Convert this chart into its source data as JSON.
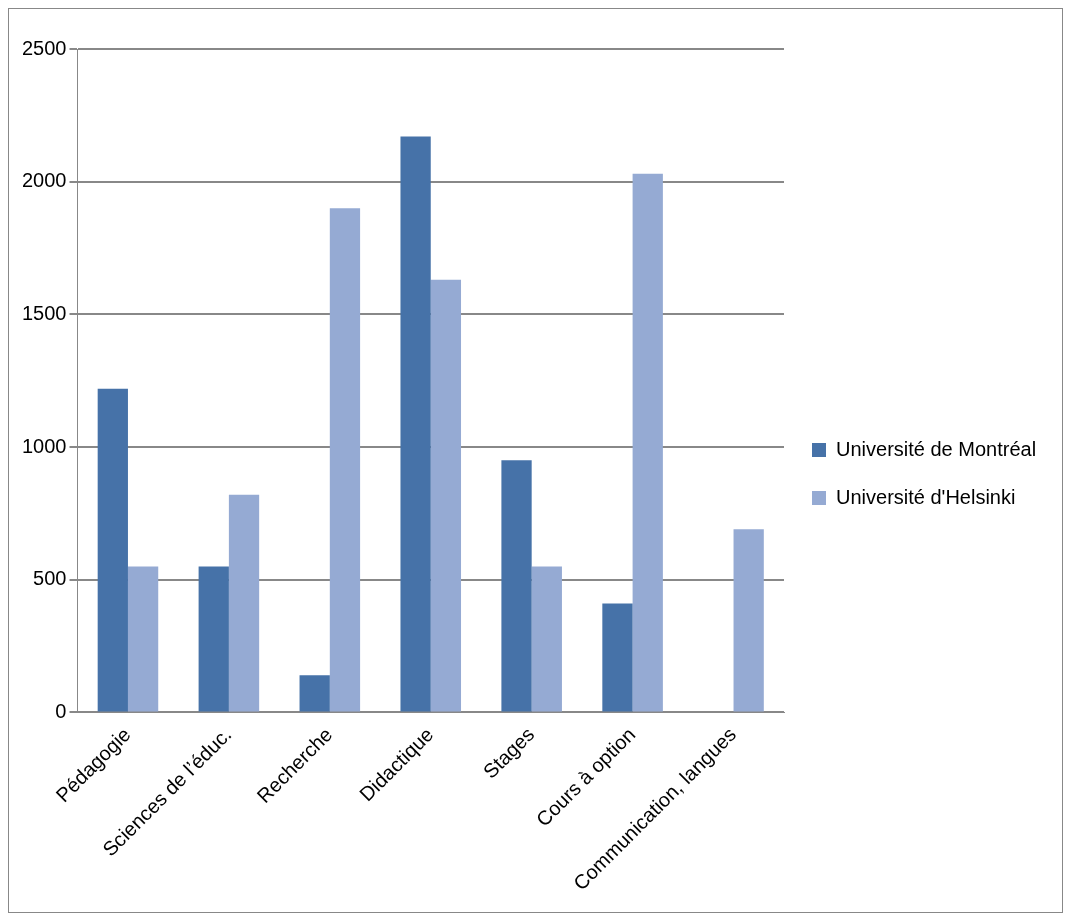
{
  "chart_data": {
    "type": "bar",
    "categories": [
      "Pédagogie",
      "Sciences de l’éduc.",
      "Recherche",
      "Didactique",
      "Stages",
      "Cours à option",
      "Communication, langues"
    ],
    "series": [
      {
        "name": "Université de Montréal",
        "color": "#4672a8",
        "values": [
          1220,
          550,
          140,
          2170,
          950,
          410,
          0
        ]
      },
      {
        "name": "Université d'Helsinki",
        "color": "#95aad3",
        "values": [
          550,
          820,
          1900,
          1630,
          550,
          2030,
          690
        ]
      }
    ],
    "ylim": [
      0,
      2500
    ],
    "yticks": [
      0,
      500,
      1000,
      1500,
      2000,
      2500
    ],
    "grid": "y",
    "legend": "right"
  }
}
